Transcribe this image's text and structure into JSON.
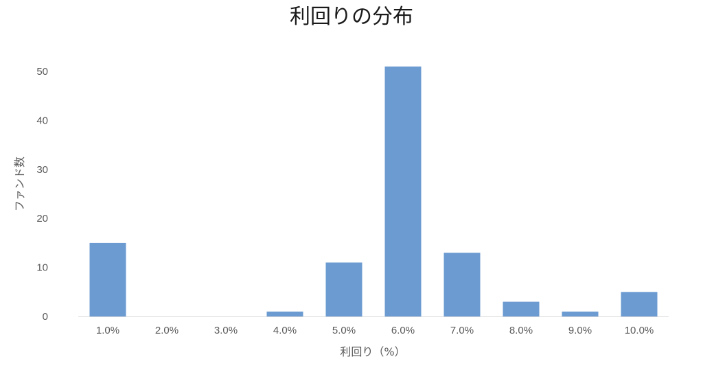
{
  "chart_data": {
    "type": "bar",
    "title": "利回りの分布",
    "xlabel": "利回り（%）",
    "ylabel": "ファンド数",
    "categories": [
      "1.0%",
      "2.0%",
      "3.0%",
      "4.0%",
      "5.0%",
      "6.0%",
      "7.0%",
      "8.0%",
      "9.0%",
      "10.0%"
    ],
    "values": [
      15,
      0,
      0,
      1,
      11,
      51,
      13,
      3,
      1,
      5
    ],
    "ylim": [
      0,
      50
    ],
    "yticks": [
      "0",
      "10",
      "20",
      "30",
      "40",
      "50"
    ],
    "grid": false,
    "bar_color": "#6b9bd1",
    "axis_color": "#d9d9d9"
  }
}
